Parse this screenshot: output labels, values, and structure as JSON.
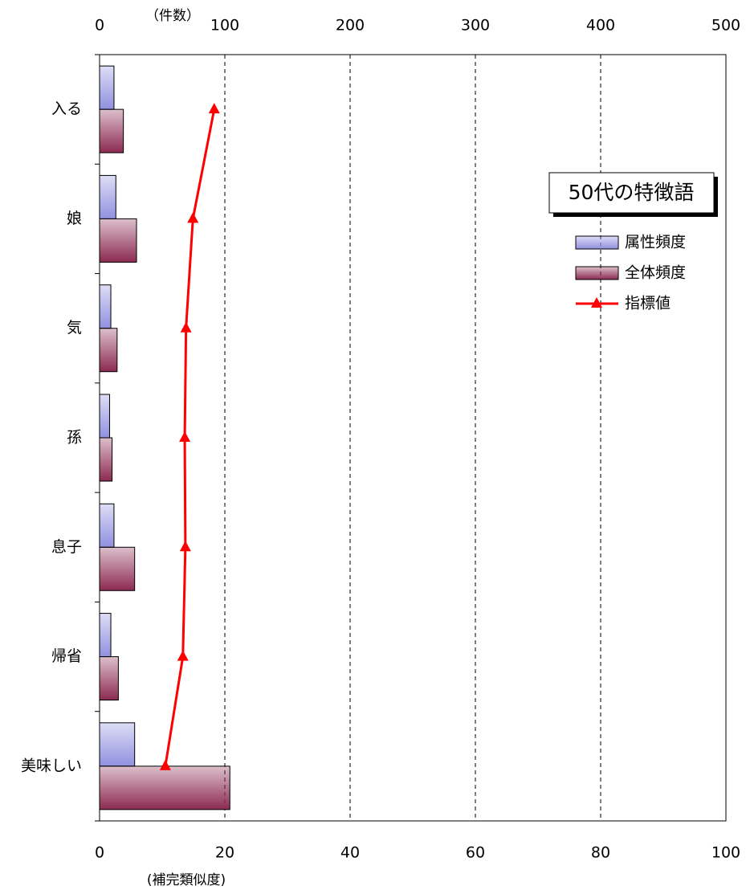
{
  "chart_data": {
    "type": "bar",
    "orientation": "horizontal",
    "title": "50代の特徴語",
    "x2_label": "（件数）",
    "x_label": "(補完類似度)",
    "categories": [
      "入る",
      "娘",
      "気",
      "孫",
      "息子",
      "帰省",
      "美味しい"
    ],
    "series": [
      {
        "name": "属性頻度",
        "type": "bar",
        "axis": "x2",
        "color": "#9090e0",
        "values": [
          11.5,
          13,
          9,
          8,
          11.5,
          9,
          28
        ]
      },
      {
        "name": "全体頻度",
        "type": "bar",
        "axis": "x2",
        "color": "#8c2a52",
        "values": [
          19,
          29.5,
          14,
          10,
          28,
          15,
          104
        ]
      },
      {
        "name": "指標値",
        "type": "line",
        "axis": "x",
        "color": "#ff0000",
        "values": [
          18.3,
          14.9,
          13.8,
          13.6,
          13.7,
          13.3,
          10.5
        ]
      }
    ],
    "x2lim": [
      0,
      500
    ],
    "x2ticks": [
      0,
      100,
      200,
      300,
      400,
      500
    ],
    "xlim": [
      0,
      100
    ],
    "xticks": [
      0,
      20,
      40,
      60,
      80,
      100
    ],
    "grid": true,
    "legend": "upper right"
  }
}
